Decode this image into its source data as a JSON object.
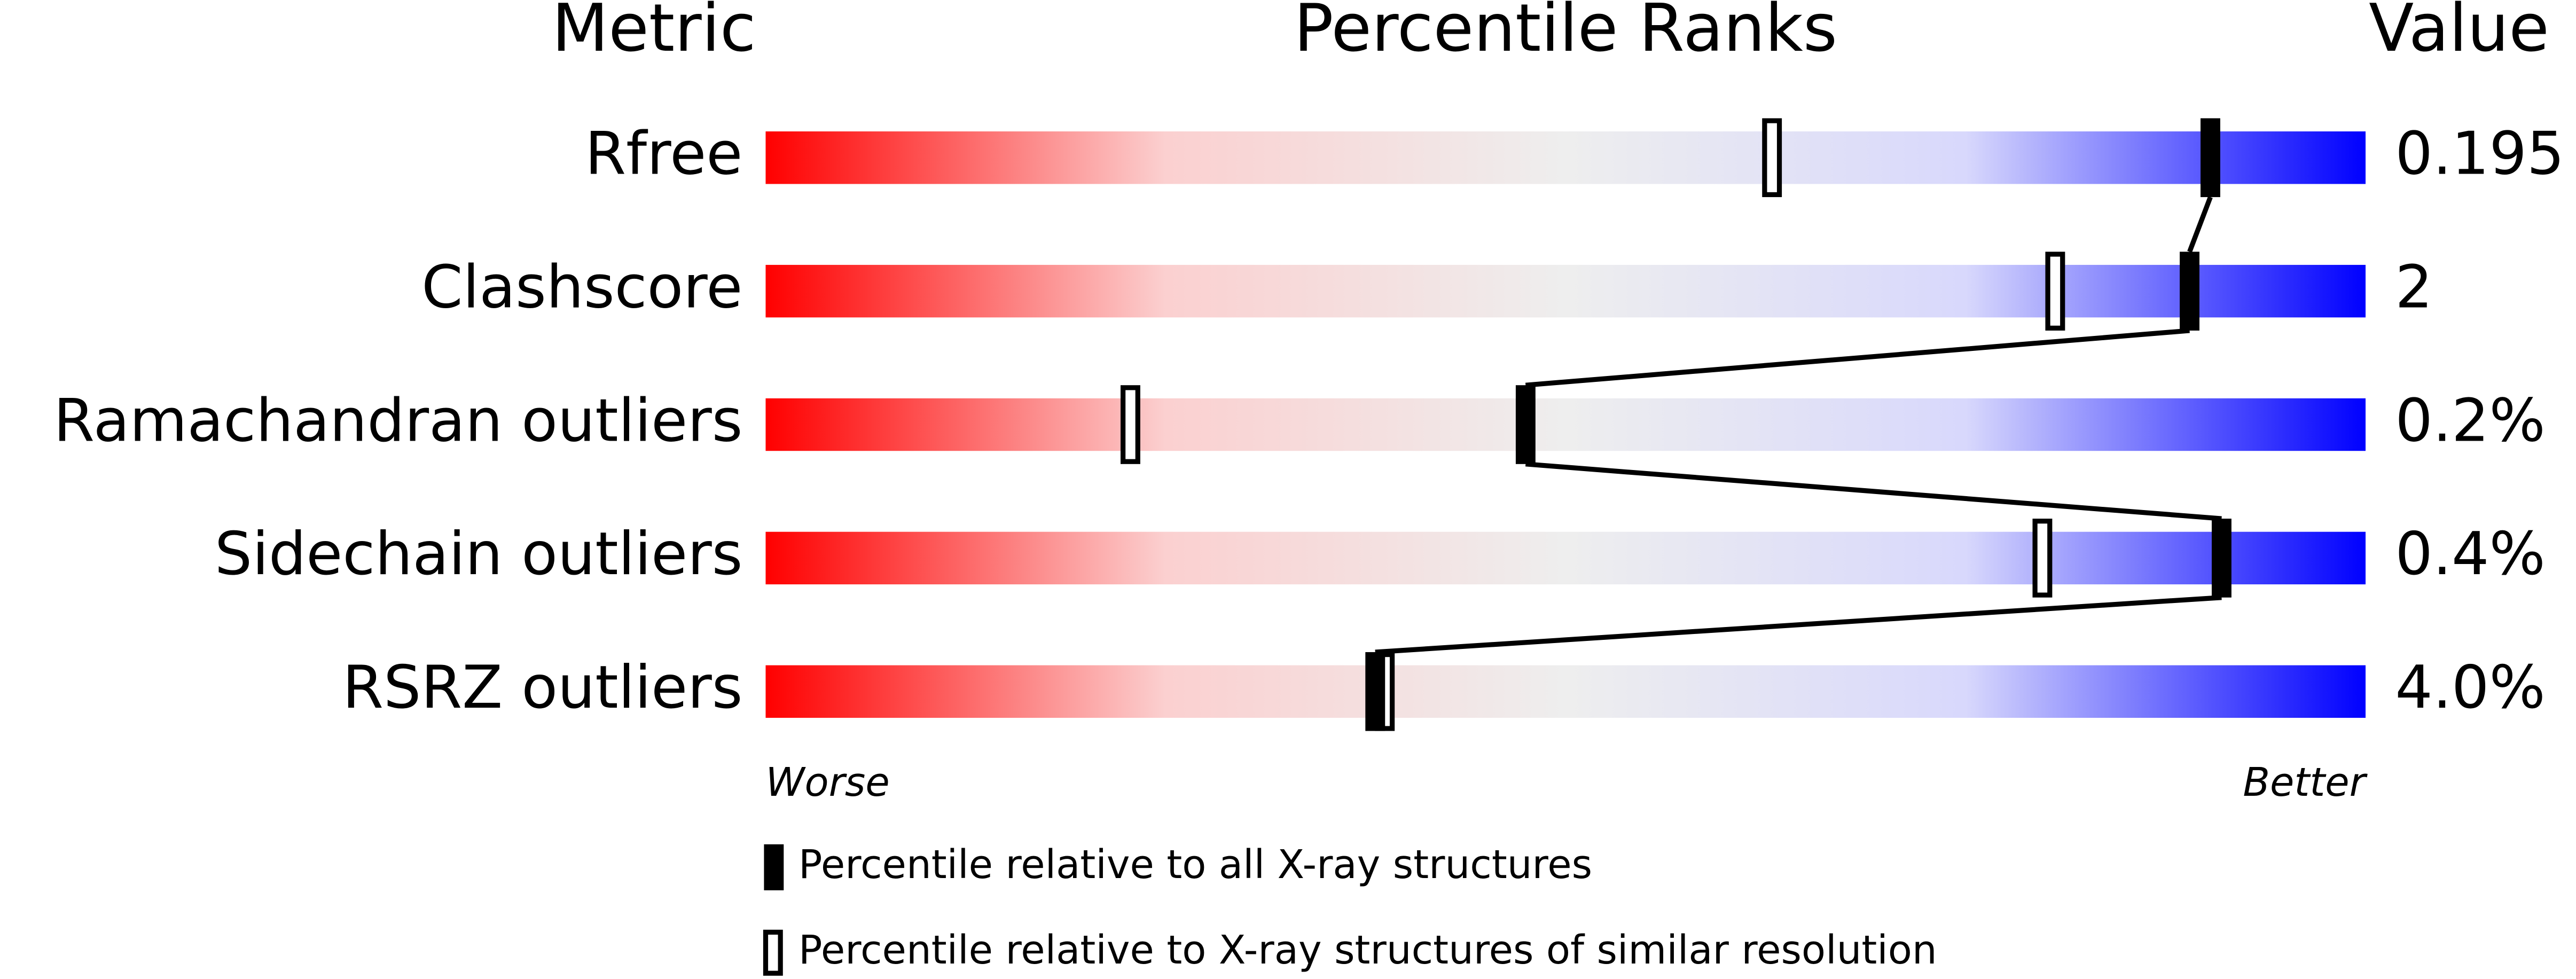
{
  "chart_data": {
    "type": "percentile-slider",
    "column_headers": [
      "Metric",
      "Percentile Ranks",
      "Value"
    ],
    "categories": [
      "Rfree",
      "Clashscore",
      "Ramachandran outliers",
      "Sidechain outliers",
      "RSRZ outliers"
    ],
    "metric_values": [
      "0.195",
      "2",
      "0.2%",
      "0.4%",
      "4.0%"
    ],
    "xlim": [
      0,
      100
    ],
    "gradient_colors": [
      "#ff0000",
      "#fbd0d0",
      "#eeeeee",
      "#d8d8fc",
      "#0000ff"
    ],
    "axis_annotations": [
      "Worse",
      "Better"
    ],
    "series": [
      {
        "name": "Percentile relative to all X-ray structures",
        "style": "filled",
        "color": "#000000",
        "values": [
          90.3,
          89.0,
          47.5,
          91.0,
          38.1
        ]
      },
      {
        "name": "Percentile relative to X-ray structures of similar resolution",
        "style": "open",
        "color": "#000000",
        "values": [
          62.9,
          80.6,
          22.8,
          79.8,
          38.7
        ]
      }
    ]
  }
}
